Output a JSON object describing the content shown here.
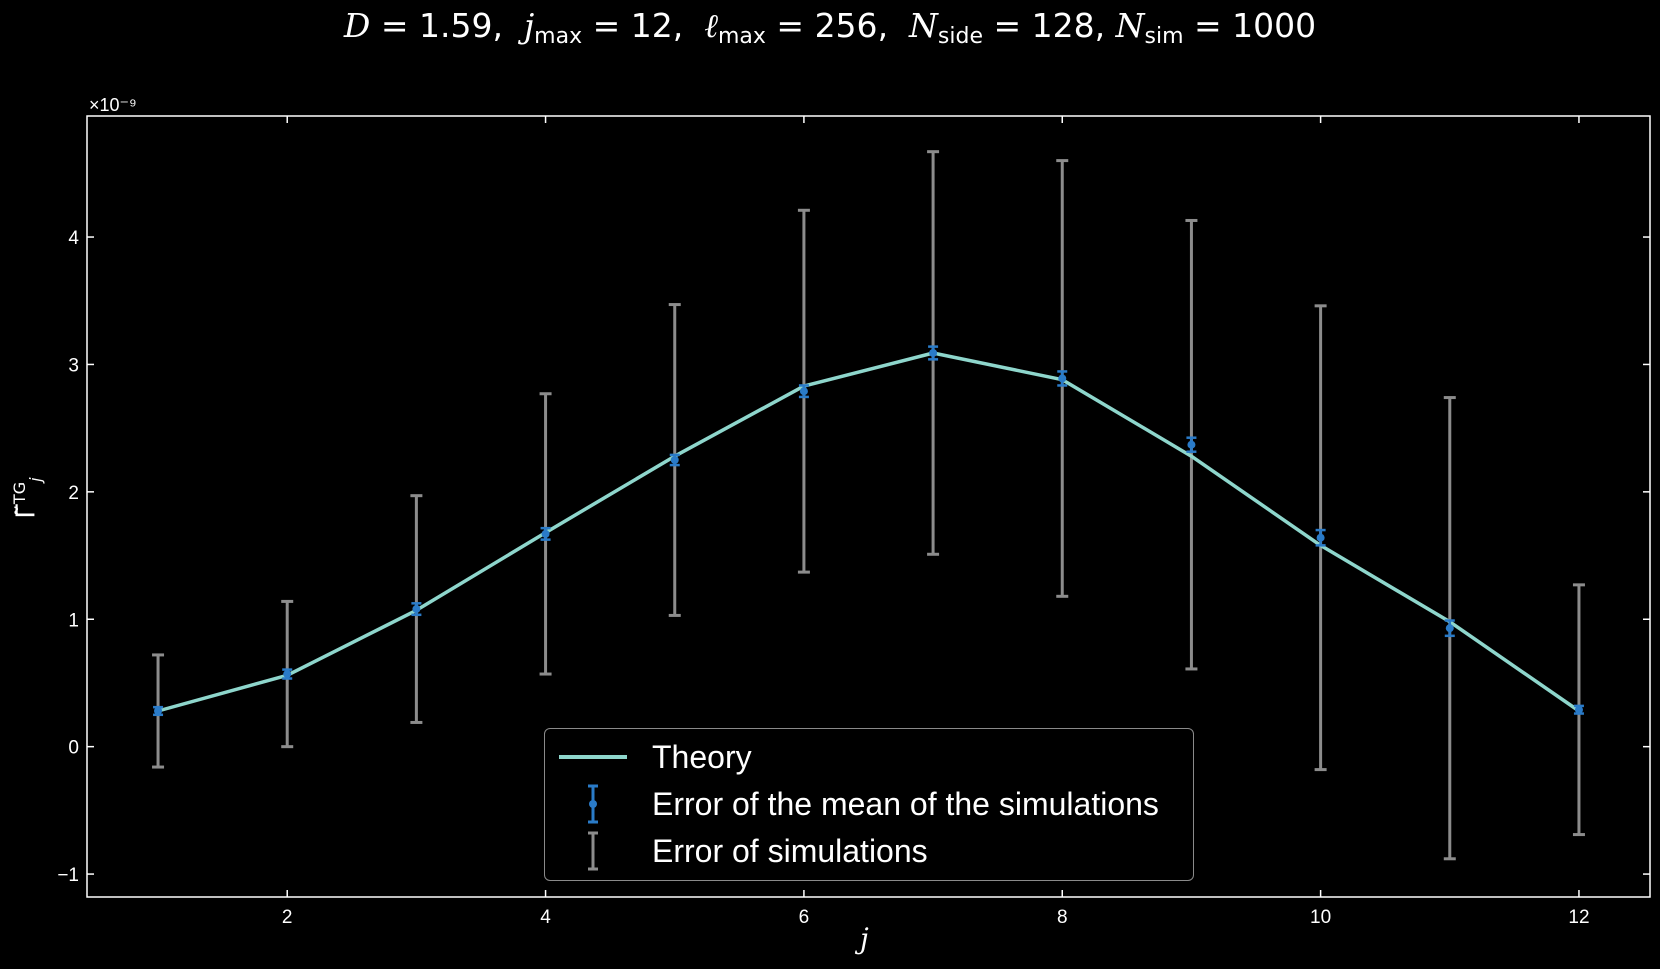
{
  "title": {
    "d_label": "D",
    "d_value": "1.59",
    "j_label": "j",
    "j_sub": "max",
    "j_value": "12",
    "l_label": "ℓ",
    "l_sub": "max",
    "l_value": "256",
    "nside_label": "N",
    "nside_sub": "side",
    "nside_value": "128",
    "nsim_label": "N",
    "nsim_sub": "sim",
    "nsim_value": "1000"
  },
  "axes": {
    "xlabel": "j",
    "ylabel_main": "Γ̃",
    "ylabel_sub": "j",
    "ylabel_sup": "TG",
    "offset_text": "×10⁻⁹"
  },
  "legend": {
    "theory": "Theory",
    "mean_error": "Error of the mean of the simulations",
    "sim_error": "Error of simulations"
  },
  "colors": {
    "theory": "#8ed6cc",
    "mean_error": "#2a7bc8",
    "sim_error": "#8c8c8c",
    "axes": "#ffffff",
    "background": "#000000"
  },
  "chart_data": {
    "type": "line",
    "xlabel": "j",
    "ylabel": "Γ̃_j^TG",
    "y_scale_factor": "1e-9",
    "xlim": [
      0.45,
      12.55
    ],
    "ylim": [
      -1.18,
      4.95
    ],
    "xticks": [
      2,
      4,
      6,
      8,
      10,
      12
    ],
    "yticks": [
      -1,
      0,
      1,
      2,
      3,
      4
    ],
    "x": [
      1,
      2,
      3,
      4,
      5,
      6,
      7,
      8,
      9,
      10,
      11,
      12
    ],
    "series": [
      {
        "name": "Theory",
        "values": [
          0.28,
          0.56,
          1.07,
          1.68,
          2.28,
          2.83,
          3.09,
          2.88,
          2.28,
          1.58,
          0.98,
          0.28
        ]
      },
      {
        "name": "Error of the mean of the simulations",
        "values": [
          0.28,
          0.57,
          1.08,
          1.67,
          2.25,
          2.79,
          3.09,
          2.89,
          2.37,
          1.64,
          0.93,
          0.29
        ],
        "errors": [
          0.03,
          0.035,
          0.045,
          0.045,
          0.04,
          0.045,
          0.05,
          0.055,
          0.055,
          0.06,
          0.06,
          0.03
        ]
      },
      {
        "name": "Error of simulations",
        "values": [
          0.28,
          0.57,
          1.08,
          1.67,
          2.25,
          2.79,
          3.09,
          2.89,
          2.37,
          1.64,
          0.93,
          0.29
        ],
        "errors": [
          0.44,
          0.57,
          0.89,
          1.1,
          1.22,
          1.42,
          1.58,
          1.71,
          1.76,
          1.82,
          1.81,
          0.98
        ]
      }
    ],
    "grid": false,
    "legend_position": "bottom-center"
  }
}
